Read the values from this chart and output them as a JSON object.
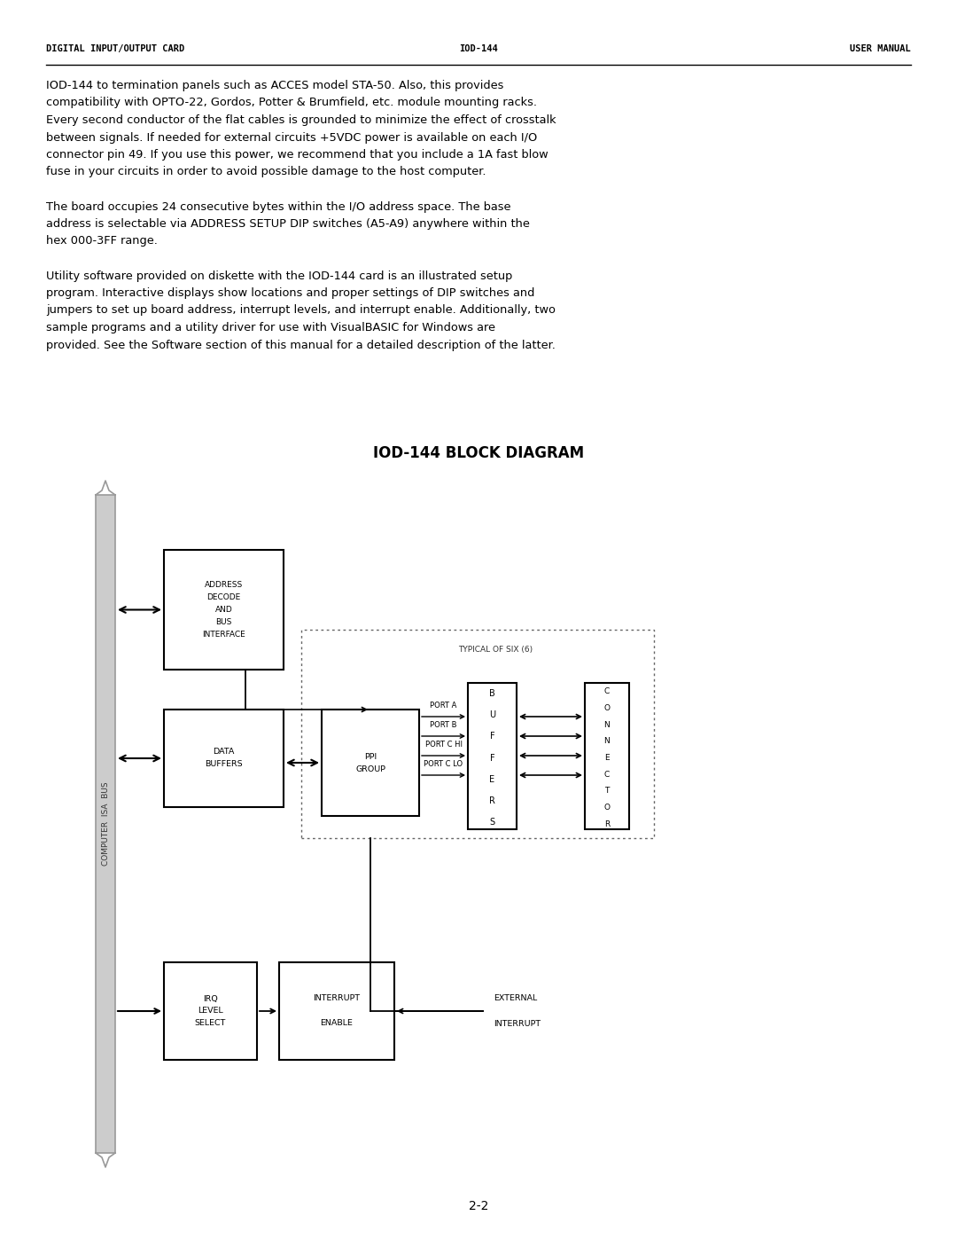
{
  "header_left": "DIGITAL INPUT/OUTPUT CARD",
  "header_center": "IOD-144",
  "header_right": "USER MANUAL",
  "page_number": "2-2",
  "body_lines": [
    "IOD-144 to termination panels such as ACCES model STA-50. Also, this provides",
    "compatibility with OPTO-22, Gordos, Potter & Brumfield, etc. module mounting racks.",
    "Every second conductor of the flat cables is grounded to minimize the effect of crosstalk",
    "between signals. If needed for external circuits +5VDC power is available on each I/O",
    "connector pin 49. If you use this power, we recommend that you include a 1A fast blow",
    "fuse in your circuits in order to avoid possible damage to the host computer.",
    "",
    "The board occupies 24 consecutive bytes within the I/O address space. The base",
    "address is selectable via ADDRESS SETUP DIP switches (A5-A9) anywhere within the",
    "hex 000-3FF range.",
    "",
    "Utility software provided on diskette with the IOD-144 card is an illustrated setup",
    "program. Interactive displays show locations and proper settings of DIP switches and",
    "jumpers to set up board address, interrupt levels, and interrupt enable. Additionally, two",
    "sample programs and a utility driver for use with VisualBASIC for Windows are",
    "provided. See the Software section of this manual for a detailed description of the latter."
  ],
  "diagram_title": "IOD-144 BLOCK DIAGRAM",
  "bg": "#ffffff",
  "lc": "#000000"
}
